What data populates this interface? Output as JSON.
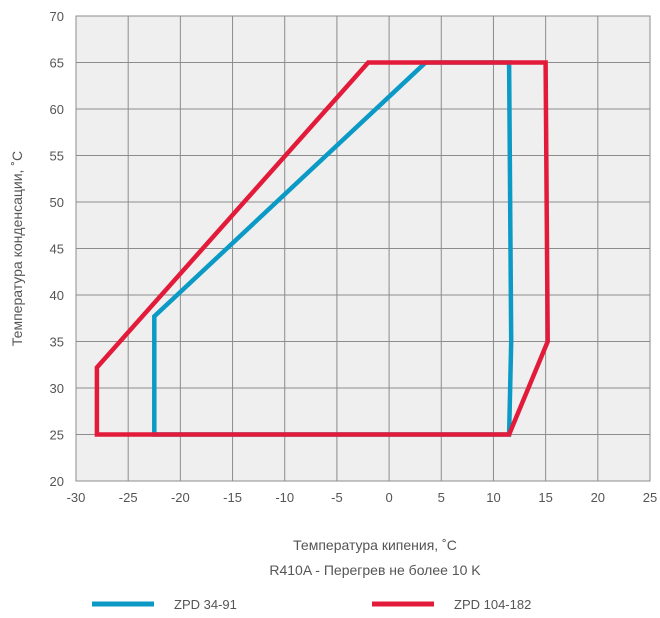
{
  "chart_data": {
    "type": "line",
    "xlabel": "Температура кипения, ˚C",
    "subtitle": "R410A - Перегрев не более 10 K",
    "ylabel": "Температура конденсации, ˚C",
    "xlim": [
      -30,
      25
    ],
    "ylim": [
      20,
      70
    ],
    "x_ticks": [
      -30,
      -25,
      -20,
      -15,
      -10,
      -5,
      0,
      5,
      10,
      15,
      20,
      25
    ],
    "y_ticks": [
      20,
      25,
      30,
      35,
      40,
      45,
      50,
      55,
      60,
      65,
      70
    ],
    "grid": true,
    "legend_position": "bottom",
    "series": [
      {
        "name": "ZPD 34-91",
        "color": "#0b9ac6",
        "points": [
          {
            "x": -22.5,
            "y": 25
          },
          {
            "x": -22.5,
            "y": 37.7
          },
          {
            "x": 3.5,
            "y": 65
          },
          {
            "x": 11.5,
            "y": 65
          },
          {
            "x": 11.7,
            "y": 35
          },
          {
            "x": 11.5,
            "y": 25
          },
          {
            "x": -22.5,
            "y": 25
          }
        ]
      },
      {
        "name": "ZPD 104-182",
        "color": "#e31b3a",
        "points": [
          {
            "x": -28,
            "y": 25
          },
          {
            "x": -28,
            "y": 32.2
          },
          {
            "x": -2,
            "y": 65
          },
          {
            "x": 15,
            "y": 65
          },
          {
            "x": 15.2,
            "y": 35
          },
          {
            "x": 11.5,
            "y": 25
          },
          {
            "x": -28,
            "y": 25
          }
        ]
      }
    ]
  }
}
